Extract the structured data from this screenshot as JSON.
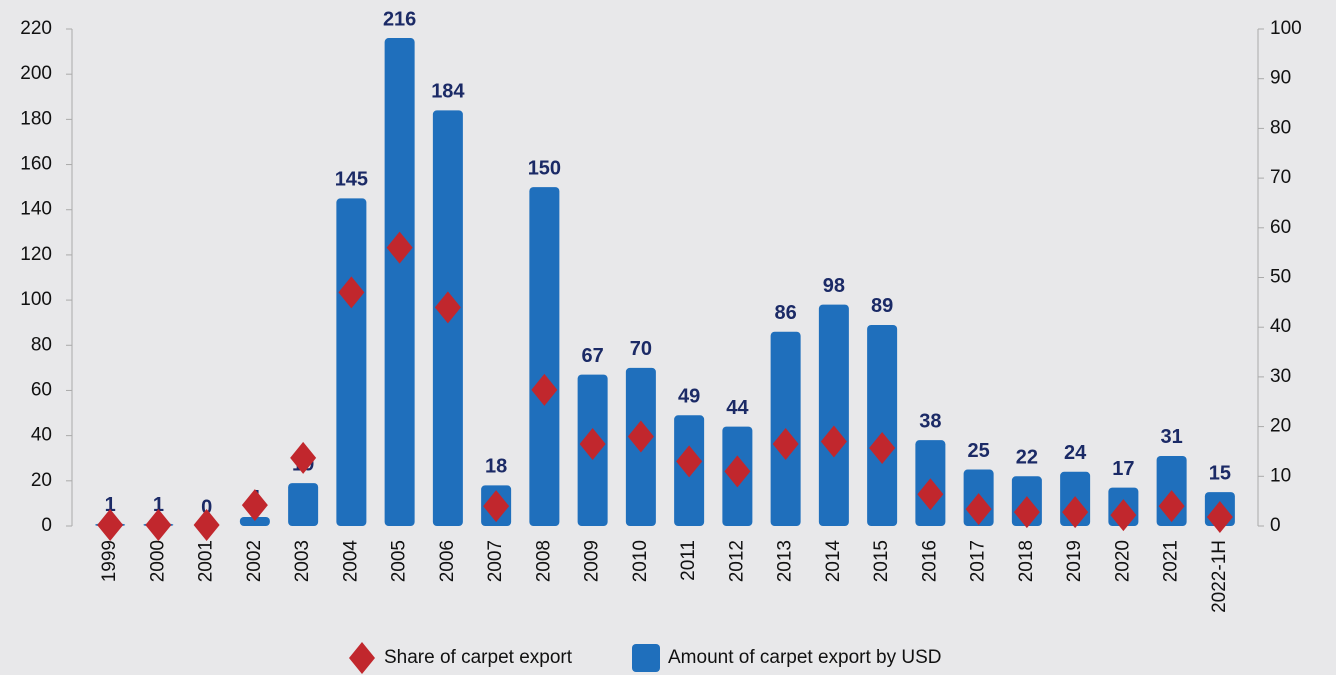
{
  "chart_data": {
    "type": "bar",
    "categories": [
      "1999",
      "2000",
      "2001",
      "2002",
      "2003",
      "2004",
      "2005",
      "2006",
      "2007",
      "2008",
      "2009",
      "2010",
      "2011",
      "2012",
      "2013",
      "2014",
      "2015",
      "2016",
      "2017",
      "2018",
      "2019",
      "2020",
      "2021",
      "2022-1H"
    ],
    "series": [
      {
        "name": "Amount of carpet export by USD",
        "type": "bar",
        "color": "#1f6fbc",
        "values": [
          1,
          1,
          0,
          4,
          19,
          145,
          216,
          184,
          18,
          150,
          67,
          70,
          49,
          44,
          86,
          98,
          89,
          38,
          25,
          22,
          24,
          17,
          31,
          15
        ]
      },
      {
        "name": "Share of carpet export",
        "type": "scatter",
        "marker": "diamond",
        "color": "#c1272d",
        "axis": "y2",
        "values": [
          0.2,
          0.2,
          0.2,
          4.2,
          13.7,
          47,
          56,
          44,
          4,
          27.4,
          16.5,
          18,
          13,
          11,
          16.5,
          17,
          15.7,
          6.4,
          3.4,
          2.8,
          2.8,
          2.2,
          4,
          1.8
        ]
      }
    ],
    "ylim": [
      0,
      220
    ],
    "yticks": [
      0,
      20,
      40,
      60,
      80,
      100,
      120,
      140,
      160,
      180,
      200,
      220
    ],
    "y2lim": [
      0,
      100
    ],
    "y2ticks": [
      0,
      10,
      20,
      30,
      40,
      50,
      60,
      70,
      80,
      90,
      100
    ],
    "legend": "bottom"
  }
}
